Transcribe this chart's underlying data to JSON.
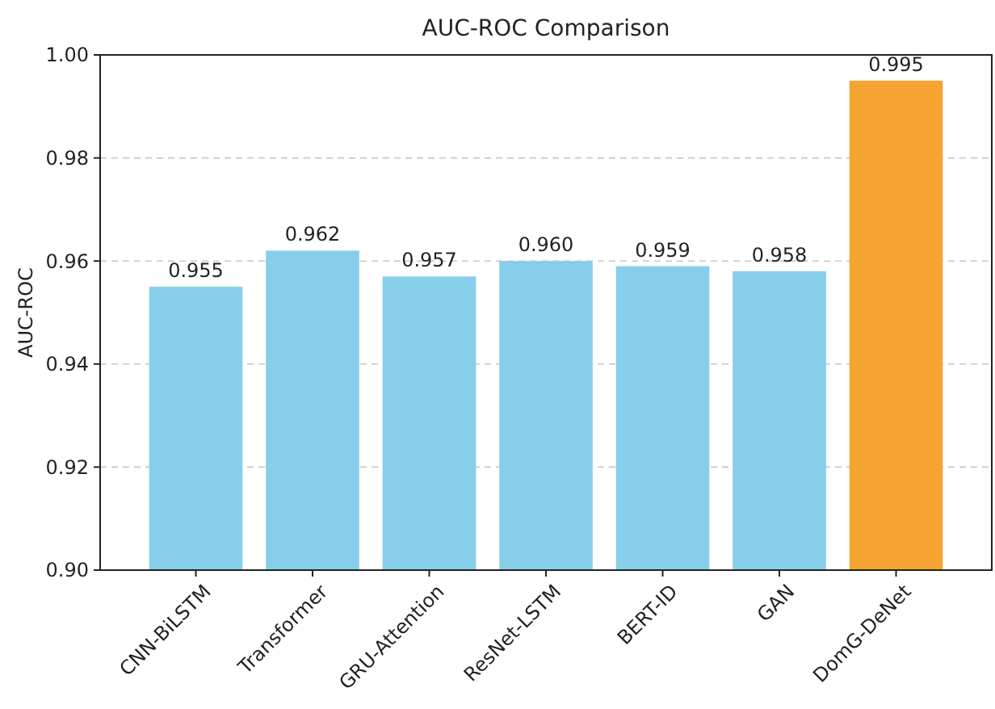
{
  "chart_data": {
    "type": "bar",
    "title": "AUC-ROC Comparison",
    "ylabel": "AUC-ROC",
    "categories": [
      "CNN-BiLSTM",
      "Transformer",
      "GRU-Attention",
      "ResNet-LSTM",
      "BERT-ID",
      "GAN",
      "DomG-DeNet"
    ],
    "values": [
      0.955,
      0.962,
      0.957,
      0.96,
      0.959,
      0.958,
      0.995
    ],
    "colors": [
      "#87ceeb",
      "#87ceeb",
      "#87ceeb",
      "#87ceeb",
      "#87ceeb",
      "#87ceeb",
      "#f5a431"
    ],
    "ylim": [
      0.9,
      1.0
    ],
    "yticks": [
      {
        "value": 0.9,
        "label": "0.90"
      },
      {
        "value": 0.92,
        "label": "0.92"
      },
      {
        "value": 0.94,
        "label": "0.94"
      },
      {
        "value": 0.96,
        "label": "0.96"
      },
      {
        "value": 0.98,
        "label": "0.98"
      },
      {
        "value": 1.0,
        "label": "1.00"
      }
    ],
    "value_labels": [
      "0.955",
      "0.962",
      "0.957",
      "0.960",
      "0.959",
      "0.958",
      "0.995"
    ],
    "grid": "y"
  }
}
